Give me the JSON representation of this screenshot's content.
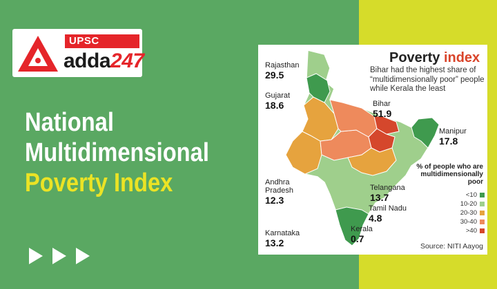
{
  "logo": {
    "tag": "UPSC",
    "word": "adda",
    "number": "247"
  },
  "headline": {
    "line1": "National",
    "line2": "Multidimensional",
    "line3": "Poverty Index"
  },
  "infographic": {
    "title_main": "Poverty ",
    "title_accent": "index",
    "subtitle": "Bihar had the highest share of “multidimensionally poor” people while Kerala the least",
    "states": [
      {
        "name": "Rajasthan",
        "value": "29.5"
      },
      {
        "name": "Gujarat",
        "value": "18.6"
      },
      {
        "name": "Bihar",
        "value": "51.9"
      },
      {
        "name": "Manipur",
        "value": "17.8"
      },
      {
        "name": "Andhra Pradesh",
        "value": "12.3"
      },
      {
        "name": "Telangana",
        "value": "13.7"
      },
      {
        "name": "Tamil Nadu",
        "value": "4.8"
      },
      {
        "name": "Karnataka",
        "value": "13.2"
      },
      {
        "name": "Kerala",
        "value": "0.7"
      }
    ],
    "legend_title": "% of people who are multidimensionally poor",
    "legend": [
      {
        "label": "<10",
        "color": "#3f9a4e"
      },
      {
        "label": "10-20",
        "color": "#9fcf8c"
      },
      {
        "label": "20-30",
        "color": "#e6a33e"
      },
      {
        "label": "30-40",
        "color": "#ee8a5c"
      },
      {
        "label": ">40",
        "color": "#d5472c"
      }
    ],
    "source": "Source: NITI Aayog"
  },
  "colors": {
    "background": "#5aa862",
    "band": "#d6dc2a",
    "brand_red": "#e5252a",
    "headline_yellow": "#ebe325"
  }
}
